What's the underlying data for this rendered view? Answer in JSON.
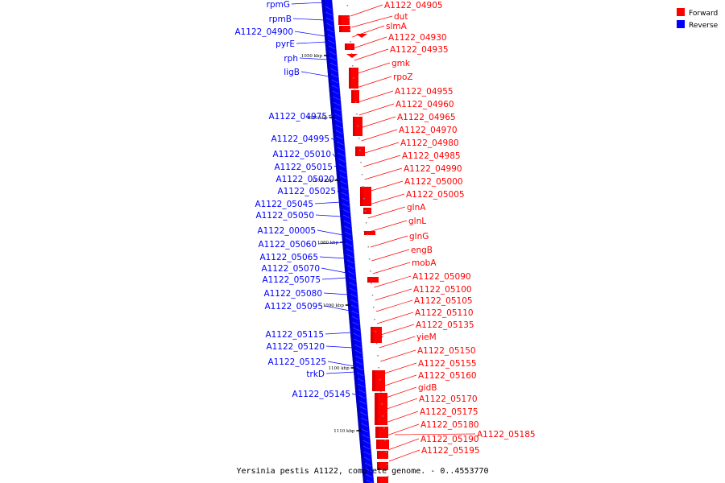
{
  "caption": "Yersinia pestis A1122, complete genome. - 0..4553770",
  "colors": {
    "forward": "#ff0000",
    "forward_dark": "#b40000",
    "reverse": "#0000ff",
    "reverse_dark": "#00008c",
    "backbone": "#888888"
  },
  "legend": [
    {
      "label": "Forward",
      "color": "#ff0000"
    },
    {
      "label": "Reverse",
      "color": "#0000ff"
    }
  ],
  "ticks": [
    "1050 kbp",
    "1060 kbp",
    "1070 kbp",
    "1080 kbp",
    "1090 kbp",
    "1100 kbp",
    "1110 kbp"
  ],
  "forward_labels": [
    "A1122_04905",
    "dut",
    "slmA",
    "A1122_04930",
    "A1122_04935",
    "gmk",
    "rpoZ",
    "A1122_04955",
    "A1122_04960",
    "A1122_04965",
    "A1122_04970",
    "A1122_04980",
    "A1122_04985",
    "A1122_04990",
    "A1122_05000",
    "A1122_05005",
    "glnA",
    "glnL",
    "glnG",
    "engB",
    "mobA",
    "A1122_05090",
    "A1122_05100",
    "A1122_05105",
    "A1122_05110",
    "A1122_05135",
    "yieM",
    "A1122_05150",
    "A1122_05155",
    "A1122_05160",
    "gidB",
    "A1122_05170",
    "A1122_05175",
    "A1122_05180",
    "A1122_05185",
    "A1122_05190",
    "A1122_05195"
  ],
  "reverse_labels": [
    "rpmG",
    "rpmB",
    "A1122_04900",
    "pyrE",
    "rph",
    "ligB",
    "A1122_04975",
    "A1122_04995",
    "A1122_05010",
    "A1122_05015",
    "A1122_05020",
    "A1122_05025",
    "A1122_05045",
    "A1122_05050",
    "A1122_00005",
    "A1122_05060",
    "A1122_05065",
    "A1122_05070",
    "A1122_05075",
    "A1122_05080",
    "A1122_05095",
    "A1122_05115",
    "A1122_05120",
    "A1122_05125",
    "trkD",
    "A1122_05145"
  ]
}
